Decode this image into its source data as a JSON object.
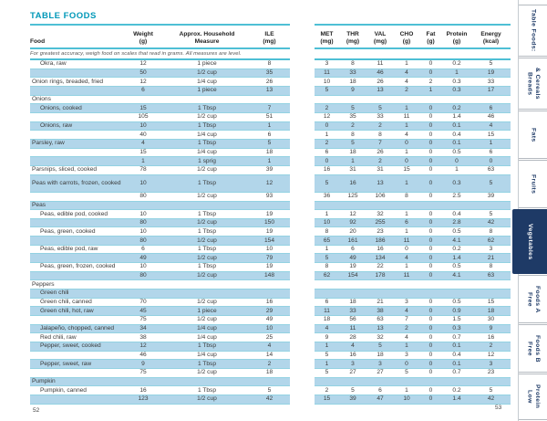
{
  "left_page": {
    "title": "TABLE FOODS",
    "columns": [
      "Food",
      "Weight\n(g)",
      "Approx. Household\nMeasure",
      "ILE\n(mg)"
    ],
    "note": "For greatest accuracy, weigh food on scales that read in grams. All measures are level.",
    "page_number": "52"
  },
  "right_page": {
    "columns": [
      "MET\n(mg)",
      "THR\n(mg)",
      "VAL\n(mg)",
      "CHO\n(g)",
      "Fat\n(g)",
      "Protein\n(g)",
      "Energy\n(kcal)"
    ],
    "page_number": "53"
  },
  "rows": [
    {
      "food": "Okra, raw",
      "indent": 1,
      "weight": "12",
      "measure": "1 piece",
      "ile": "8",
      "met": "3",
      "thr": "8",
      "val": "11",
      "cho": "1",
      "fat": "0",
      "protein": "0.2",
      "energy": "5"
    },
    {
      "food": "",
      "weight": "50",
      "measure": "1/2 cup",
      "ile": "35",
      "met": "11",
      "thr": "33",
      "val": "46",
      "cho": "4",
      "fat": "0",
      "protein": "1",
      "energy": "19"
    },
    {
      "food": "Onion rings, breaded, fried",
      "indent": 0,
      "weight": "12",
      "measure": "1/4 cup",
      "ile": "26",
      "met": "10",
      "thr": "18",
      "val": "26",
      "cho": "4",
      "fat": "2",
      "protein": "0.3",
      "energy": "33"
    },
    {
      "food": "",
      "weight": "6",
      "measure": "1 piece",
      "ile": "13",
      "met": "5",
      "thr": "9",
      "val": "13",
      "cho": "2",
      "fat": "1",
      "protein": "0.3",
      "energy": "17"
    },
    {
      "food": "Onions",
      "section": true,
      "indent": 0
    },
    {
      "food": "Onions, cooked",
      "indent": 1,
      "weight": "15",
      "measure": "1 Tbsp",
      "ile": "7",
      "met": "2",
      "thr": "5",
      "val": "5",
      "cho": "1",
      "fat": "0",
      "protein": "0.2",
      "energy": "6"
    },
    {
      "food": "",
      "weight": "105",
      "measure": "1/2 cup",
      "ile": "51",
      "met": "12",
      "thr": "35",
      "val": "33",
      "cho": "11",
      "fat": "0",
      "protein": "1.4",
      "energy": "46"
    },
    {
      "food": "Onions, raw",
      "indent": 1,
      "weight": "10",
      "measure": "1 Tbsp",
      "ile": "1",
      "met": "0",
      "thr": "2",
      "val": "2",
      "cho": "1",
      "fat": "0",
      "protein": "0.1",
      "energy": "4"
    },
    {
      "food": "",
      "weight": "40",
      "measure": "1/4 cup",
      "ile": "6",
      "met": "1",
      "thr": "8",
      "val": "8",
      "cho": "4",
      "fat": "0",
      "protein": "0.4",
      "energy": "15"
    },
    {
      "food": "Parsley, raw",
      "indent": 0,
      "weight": "4",
      "measure": "1 Tbsp",
      "ile": "5",
      "met": "2",
      "thr": "5",
      "val": "7",
      "cho": "0",
      "fat": "0",
      "protein": "0.1",
      "energy": "1"
    },
    {
      "food": "",
      "weight": "15",
      "measure": "1/4 cup",
      "ile": "18",
      "met": "6",
      "thr": "18",
      "val": "26",
      "cho": "1",
      "fat": "0",
      "protein": "0.5",
      "energy": "6"
    },
    {
      "food": "",
      "weight": "1",
      "measure": "1 sprig",
      "ile": "1",
      "met": "0",
      "thr": "1",
      "val": "2",
      "cho": "0",
      "fat": "0",
      "protein": "0",
      "energy": "0"
    },
    {
      "food": "Parsnips, sliced, cooked",
      "indent": 0,
      "weight": "78",
      "measure": "1/2 cup",
      "ile": "39",
      "met": "16",
      "thr": "31",
      "val": "31",
      "cho": "15",
      "fat": "0",
      "protein": "1",
      "energy": "63"
    },
    {
      "food": "Peas with carrots, frozen, cooked",
      "indent": 0,
      "tall": true,
      "weight": "10",
      "measure": "1 Tbsp",
      "ile": "12",
      "met": "5",
      "thr": "16",
      "val": "13",
      "cho": "1",
      "fat": "0",
      "protein": "0.3",
      "energy": "5"
    },
    {
      "food": "",
      "weight": "80",
      "measure": "1/2 cup",
      "ile": "93",
      "met": "36",
      "thr": "125",
      "val": "106",
      "cho": "8",
      "fat": "0",
      "protein": "2.5",
      "energy": "39"
    },
    {
      "food": "Peas",
      "section": true,
      "indent": 0
    },
    {
      "food": "Peas, edible pod, cooked",
      "indent": 1,
      "weight": "10",
      "measure": "1 Tbsp",
      "ile": "19",
      "met": "1",
      "thr": "12",
      "val": "32",
      "cho": "1",
      "fat": "0",
      "protein": "0.4",
      "energy": "5"
    },
    {
      "food": "",
      "weight": "80",
      "measure": "1/2 cup",
      "ile": "150",
      "met": "10",
      "thr": "92",
      "val": "255",
      "cho": "6",
      "fat": "0",
      "protein": "2.8",
      "energy": "42"
    },
    {
      "food": "Peas, green, cooked",
      "indent": 1,
      "weight": "10",
      "measure": "1 Tbsp",
      "ile": "19",
      "met": "8",
      "thr": "20",
      "val": "23",
      "cho": "1",
      "fat": "0",
      "protein": "0.5",
      "energy": "8"
    },
    {
      "food": "",
      "weight": "80",
      "measure": "1/2 cup",
      "ile": "154",
      "met": "65",
      "thr": "161",
      "val": "186",
      "cho": "11",
      "fat": "0",
      "protein": "4.1",
      "energy": "62"
    },
    {
      "food": "Peas, edible pod, raw",
      "indent": 1,
      "weight": "6",
      "measure": "1 Tbsp",
      "ile": "10",
      "met": "1",
      "thr": "6",
      "val": "16",
      "cho": "0",
      "fat": "0",
      "protein": "0.2",
      "energy": "3"
    },
    {
      "food": "",
      "weight": "49",
      "measure": "1/2 cup",
      "ile": "79",
      "met": "5",
      "thr": "49",
      "val": "134",
      "cho": "4",
      "fat": "0",
      "protein": "1.4",
      "energy": "21"
    },
    {
      "food": "Peas, green, frozen, cooked",
      "indent": 1,
      "weight": "10",
      "measure": "1 Tbsp",
      "ile": "19",
      "met": "8",
      "thr": "19",
      "val": "22",
      "cho": "1",
      "fat": "0",
      "protein": "0.5",
      "energy": "8"
    },
    {
      "food": "",
      "weight": "80",
      "measure": "1/2 cup",
      "ile": "148",
      "met": "62",
      "thr": "154",
      "val": "178",
      "cho": "11",
      "fat": "0",
      "protein": "4.1",
      "energy": "63"
    },
    {
      "food": "Peppers",
      "section": true,
      "indent": 0
    },
    {
      "food": "Green chili",
      "section": true,
      "indent": 1
    },
    {
      "food": "Green chili, canned",
      "indent": 1,
      "weight": "70",
      "measure": "1/2 cup",
      "ile": "16",
      "met": "6",
      "thr": "18",
      "val": "21",
      "cho": "3",
      "fat": "0",
      "protein": "0.5",
      "energy": "15"
    },
    {
      "food": "Green chili, hot, raw",
      "indent": 1,
      "weight": "45",
      "measure": "1 piece",
      "ile": "29",
      "met": "11",
      "thr": "33",
      "val": "38",
      "cho": "4",
      "fat": "0",
      "protein": "0.9",
      "energy": "18"
    },
    {
      "food": "",
      "weight": "75",
      "measure": "1/2 cup",
      "ile": "49",
      "met": "18",
      "thr": "56",
      "val": "63",
      "cho": "7",
      "fat": "0",
      "protein": "1.5",
      "energy": "30"
    },
    {
      "food": "Jalapeño, chopped, canned",
      "indent": 1,
      "weight": "34",
      "measure": "1/4 cup",
      "ile": "10",
      "met": "4",
      "thr": "11",
      "val": "13",
      "cho": "2",
      "fat": "0",
      "protein": "0.3",
      "energy": "9"
    },
    {
      "food": "Red chili, raw",
      "indent": 1,
      "weight": "38",
      "measure": "1/4 cup",
      "ile": "25",
      "met": "9",
      "thr": "28",
      "val": "32",
      "cho": "4",
      "fat": "0",
      "protein": "0.7",
      "energy": "16"
    },
    {
      "food": "Pepper, sweet, cooked",
      "indent": 1,
      "weight": "12",
      "measure": "1 Tbsp",
      "ile": "4",
      "met": "1",
      "thr": "4",
      "val": "5",
      "cho": "1",
      "fat": "0",
      "protein": "0.1",
      "energy": "2"
    },
    {
      "food": "",
      "weight": "46",
      "measure": "1/4 cup",
      "ile": "14",
      "met": "5",
      "thr": "16",
      "val": "18",
      "cho": "3",
      "fat": "0",
      "protein": "0.4",
      "energy": "12"
    },
    {
      "food": "Pepper, sweet, raw",
      "indent": 1,
      "weight": "9",
      "measure": "1 Tbsp",
      "ile": "2",
      "met": "1",
      "thr": "3",
      "val": "3",
      "cho": "0",
      "fat": "0",
      "protein": "0.1",
      "energy": "3"
    },
    {
      "food": "",
      "weight": "75",
      "measure": "1/2 cup",
      "ile": "18",
      "met": "5",
      "thr": "27",
      "val": "27",
      "cho": "5",
      "fat": "0",
      "protein": "0.7",
      "energy": "23"
    },
    {
      "food": "Pumpkin",
      "section": true,
      "indent": 0
    },
    {
      "food": "Pumpkin, canned",
      "indent": 1,
      "weight": "16",
      "measure": "1 Tbsp",
      "ile": "5",
      "met": "2",
      "thr": "5",
      "val": "6",
      "cho": "1",
      "fat": "0",
      "protein": "0.2",
      "energy": "5"
    },
    {
      "food": "",
      "weight": "123",
      "measure": "1/2 cup",
      "ile": "42",
      "met": "15",
      "thr": "39",
      "val": "47",
      "cho": "10",
      "fat": "0",
      "protein": "1.4",
      "energy": "42"
    }
  ],
  "sidebar_tabs": [
    {
      "label": "Table Foods:",
      "selected": false
    },
    {
      "label": "Breads\n& Cereals",
      "selected": false
    },
    {
      "label": "Fats",
      "selected": false
    },
    {
      "label": "Fruits",
      "selected": false
    },
    {
      "label": "Vegetables",
      "selected": true
    },
    {
      "label": "Free\nFoods A",
      "selected": false
    },
    {
      "label": "Free\nFoods B",
      "selected": false
    },
    {
      "label": "Low\nProtein",
      "selected": false
    }
  ],
  "colors": {
    "teal_title": "#0098b8",
    "teal_rule": "#4ebfd5",
    "row_shade": "#b2d6ea",
    "navy_tab": "#1e3a66"
  }
}
